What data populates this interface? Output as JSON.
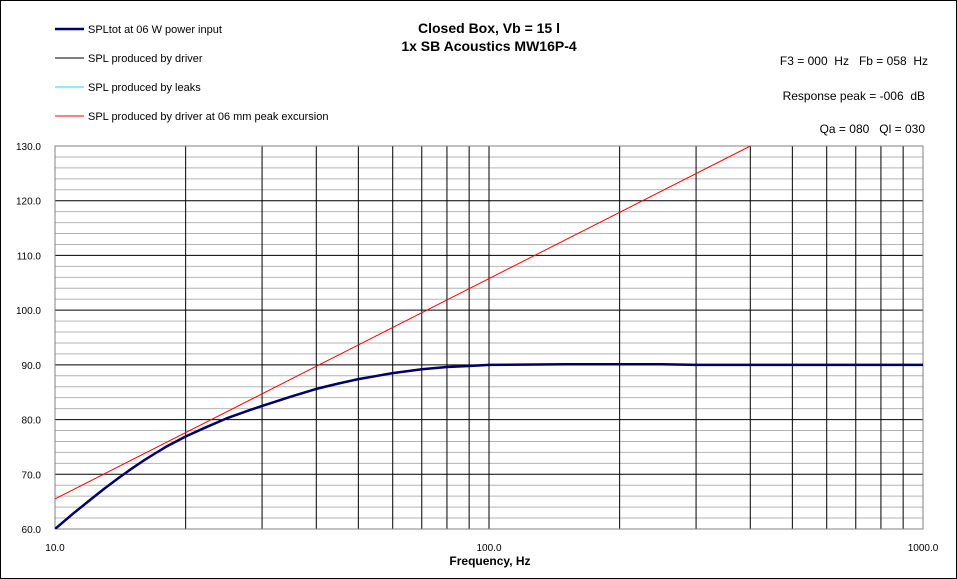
{
  "chart_data": {
    "type": "line",
    "title": "Closed Box, Vb = 15 l",
    "subtitle": "1x SB Acoustics MW16P-4",
    "xlabel": "Frequency, Hz",
    "ylabel": "",
    "x_scale": "log",
    "xlim": [
      10,
      1000
    ],
    "ylim": [
      60,
      130
    ],
    "x_tick_labels": [
      "10.0",
      "100.0",
      "1000.0"
    ],
    "y_tick_labels": [
      "60.0",
      "70.0",
      "80.0",
      "90.0",
      "100.0",
      "110.0",
      "120.0",
      "130.0"
    ],
    "grid": true,
    "legend_position": "top-left",
    "info": {
      "f3": "F3 = 000  Hz   Fb = 058  Hz",
      "response_peak": "Response peak = -006  dB",
      "qa_ql": "Qa = 080   Ql = 030"
    },
    "series": [
      {
        "name": "SPLtot at 06 W power input",
        "color": "#000066",
        "x": [
          10,
          11,
          12,
          13,
          14,
          15,
          16,
          17,
          18,
          20,
          22,
          25,
          28,
          30,
          35,
          40,
          45,
          50,
          60,
          70,
          80,
          90,
          100,
          150,
          200,
          250,
          300,
          400,
          500,
          700,
          1000
        ],
        "values": [
          60.0,
          62.8,
          65.2,
          67.4,
          69.3,
          71.0,
          72.5,
          73.8,
          75.0,
          76.9,
          78.4,
          80.3,
          81.7,
          82.5,
          84.2,
          85.6,
          86.6,
          87.4,
          88.5,
          89.2,
          89.6,
          89.8,
          90.0,
          90.1,
          90.1,
          90.1,
          90.0,
          90.0,
          90.0,
          90.0,
          90.0
        ]
      },
      {
        "name": "SPL produced by driver",
        "color": "#000000",
        "x": [],
        "values": []
      },
      {
        "name": "SPL produced by leaks",
        "color": "#33ccff",
        "x": [],
        "values": []
      },
      {
        "name": "SPL produced by driver at 06 mm peak excursion",
        "color": "#ff0000",
        "x": [
          10,
          400
        ],
        "values": [
          65.5,
          130
        ]
      }
    ]
  }
}
